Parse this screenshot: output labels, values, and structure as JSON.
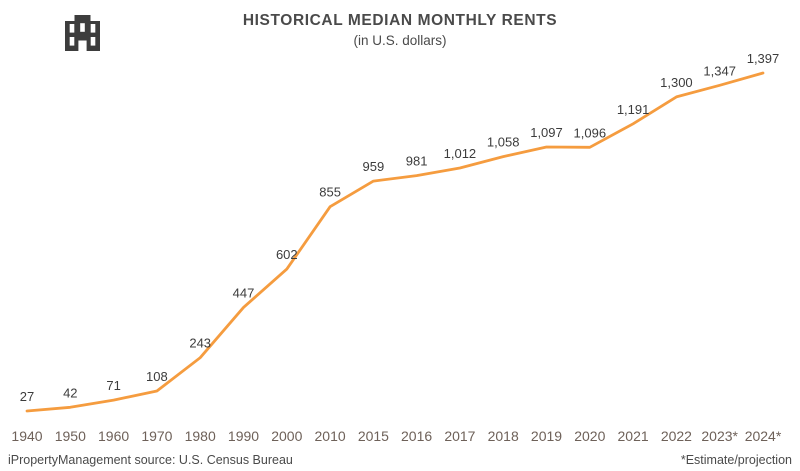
{
  "header": {
    "title": "HISTORICAL MEDIAN MONTHLY RENTS",
    "subtitle": "(in U.S. dollars)",
    "logo_icon": "building-icon",
    "logo_color": "#3d3d3d"
  },
  "chart_data": {
    "type": "line",
    "title": "HISTORICAL MEDIAN MONTHLY RENTS",
    "subtitle": "(in U.S. dollars)",
    "categories": [
      "1940",
      "1950",
      "1960",
      "1970",
      "1980",
      "1990",
      "2000",
      "2010",
      "2015",
      "2016",
      "2017",
      "2018",
      "2019",
      "2020",
      "2021",
      "2022",
      "2023*",
      "2024*"
    ],
    "values": [
      27,
      42,
      71,
      108,
      243,
      447,
      602,
      855,
      959,
      981,
      1012,
      1058,
      1097,
      1096,
      1191,
      1300,
      1347,
      1397
    ],
    "value_labels": [
      "27",
      "42",
      "71",
      "108",
      "243",
      "447",
      "602",
      "855",
      "959",
      "981",
      "1,012",
      "1,058",
      "1,097",
      "1,096",
      "1,191",
      "1,300",
      "1,347",
      "1,397"
    ],
    "xlabel": "",
    "ylabel": "",
    "ylim": [
      0,
      1500
    ],
    "grid": false,
    "legend": "none",
    "line_color": "#f59c3f",
    "value_label_color": "#3c3c3c",
    "tick_label_color": "#6e6159"
  },
  "footer": {
    "source": "iPropertyManagement source: U.S. Census Bureau",
    "note": "*Estimate/projection"
  }
}
